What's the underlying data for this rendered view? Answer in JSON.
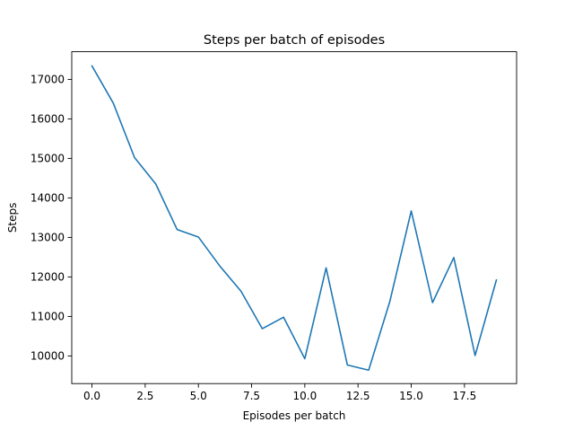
{
  "chart_data": {
    "type": "line",
    "title": "Steps per batch of episodes",
    "xlabel": "Episodes per batch",
    "ylabel": "Steps",
    "xlim": [
      -0.95,
      19.95
    ],
    "ylim": [
      9300,
      17700
    ],
    "x_ticks": [
      0,
      2.5,
      5,
      7.5,
      10,
      12.5,
      15,
      17.5
    ],
    "x_tick_labels": [
      "0.0",
      "2.5",
      "5.0",
      "7.5",
      "10.0",
      "12.5",
      "15.0",
      "17.5"
    ],
    "y_ticks": [
      10000,
      11000,
      12000,
      13000,
      14000,
      15000,
      16000,
      17000
    ],
    "y_tick_labels": [
      "10000",
      "11000",
      "12000",
      "13000",
      "14000",
      "15000",
      "16000",
      "17000"
    ],
    "grid": false,
    "series": [
      {
        "color": "#1f77b4",
        "x": [
          0,
          1,
          2,
          3,
          4,
          5,
          6,
          7,
          8,
          9,
          10,
          11,
          12,
          13,
          14,
          15,
          16,
          17,
          18,
          19
        ],
        "y": [
          17340,
          16400,
          15020,
          14350,
          13200,
          13010,
          12280,
          11640,
          10690,
          10980,
          9930,
          12230,
          9770,
          9640,
          11390,
          13670,
          11350,
          12490,
          10010,
          11920
        ]
      }
    ]
  }
}
